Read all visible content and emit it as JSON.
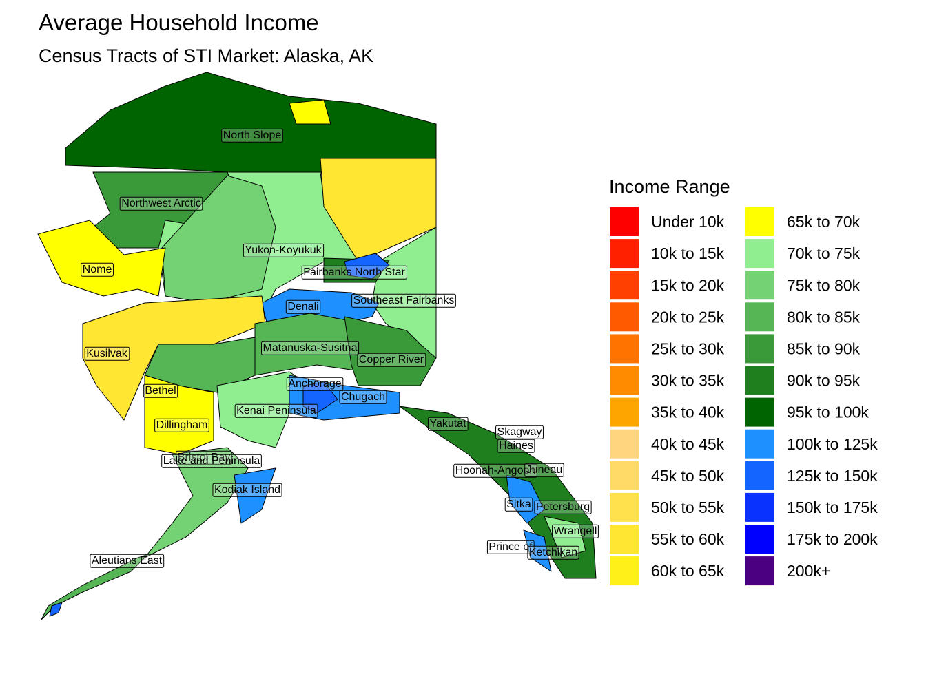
{
  "title": "Average Household Income",
  "subtitle": "Census Tracts of STI Market: Alaska, AK",
  "legend": {
    "title": "Income Range",
    "entries": [
      {
        "label": "Under 10k",
        "color": "#FF0000"
      },
      {
        "label": "10k to 15k",
        "color": "#FF2000"
      },
      {
        "label": "15k to 20k",
        "color": "#FF4000"
      },
      {
        "label": "20k to 25k",
        "color": "#FF5A00"
      },
      {
        "label": "25k to 30k",
        "color": "#FF7400"
      },
      {
        "label": "30k to 35k",
        "color": "#FF8C00"
      },
      {
        "label": "35k to 40k",
        "color": "#FFA500"
      },
      {
        "label": "40k to 45k",
        "color": "#FFD580"
      },
      {
        "label": "45k to 50k",
        "color": "#FFDA66"
      },
      {
        "label": "50k to 55k",
        "color": "#FFE04D"
      },
      {
        "label": "55k to 60k",
        "color": "#FFE633"
      },
      {
        "label": "60k to 65k",
        "color": "#FFF01A"
      },
      {
        "label": "65k to 70k",
        "color": "#FFFF00"
      },
      {
        "label": "70k to 75k",
        "color": "#90EE90"
      },
      {
        "label": "75k to 80k",
        "color": "#74D274"
      },
      {
        "label": "80k to 85k",
        "color": "#56B656"
      },
      {
        "label": "85k to 90k",
        "color": "#3A9A3A"
      },
      {
        "label": "90k to 95k",
        "color": "#1F7F1F"
      },
      {
        "label": "95k to 100k",
        "color": "#006400"
      },
      {
        "label": "100k to 125k",
        "color": "#1E90FF"
      },
      {
        "label": "125k to 150k",
        "color": "#1464FF"
      },
      {
        "label": "150k to 175k",
        "color": "#0A32FF"
      },
      {
        "label": "175k to 200k",
        "color": "#0000FF"
      },
      {
        "label": "200k+",
        "color": "#4B0082"
      }
    ]
  },
  "regions": [
    "North Slope",
    "Northwest Arctic",
    "Yukon-Koyukuk",
    "Nome",
    "Fairbanks North Star",
    "Denali",
    "Southeast Fairbanks",
    "Kusilvak",
    "Matanuska-Susitna",
    "Copper River",
    "Bethel",
    "Anchorage",
    "Chugach",
    "Kenai Peninsula",
    "Dillingham",
    "Yakutat",
    "Skagway",
    "Haines",
    "Bristol Bay",
    "Lake and Peninsula",
    "Hoonah-Angoon",
    "Juneau",
    "Kodiak Island",
    "Sitka",
    "Petersburg",
    "Wrangell",
    "Prince of",
    "Ketchikan",
    "Aleutians East"
  ]
}
